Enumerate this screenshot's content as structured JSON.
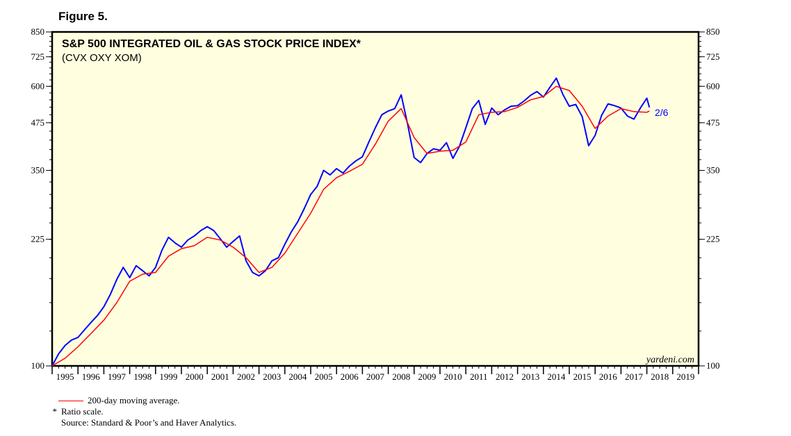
{
  "figure_label": "Figure 5.",
  "chart_data": {
    "type": "line",
    "title": "S&P 500 INTEGRATED OIL & GAS STOCK PRICE INDEX*",
    "subtitle": "(CVX OXY XOM)",
    "y_scale": "log",
    "ylim": [
      100,
      850
    ],
    "y_ticks": [
      100,
      225,
      350,
      475,
      600,
      725,
      850
    ],
    "y_tick_labels": [
      "100",
      "225",
      "350",
      "475",
      "600",
      "725",
      "850"
    ],
    "xlim": [
      1995.0,
      2020.0
    ],
    "x_tick_labels": [
      "1995",
      "1996",
      "1997",
      "1998",
      "1999",
      "2000",
      "2001",
      "2002",
      "2003",
      "2004",
      "2005",
      "2006",
      "2007",
      "2008",
      "2009",
      "2010",
      "2011",
      "2012",
      "2013",
      "2014",
      "2015",
      "2016",
      "2017",
      "2018",
      "2019"
    ],
    "series": [
      {
        "name": "Index",
        "color": "#0000ff",
        "points": [
          [
            1995.0,
            100
          ],
          [
            1995.25,
            108
          ],
          [
            1995.5,
            114
          ],
          [
            1995.75,
            118
          ],
          [
            1996.0,
            120
          ],
          [
            1996.25,
            126
          ],
          [
            1996.5,
            132
          ],
          [
            1996.75,
            138
          ],
          [
            1997.0,
            146
          ],
          [
            1997.25,
            158
          ],
          [
            1997.5,
            174
          ],
          [
            1997.75,
            188
          ],
          [
            1998.0,
            176
          ],
          [
            1998.25,
            190
          ],
          [
            1998.5,
            184
          ],
          [
            1998.75,
            178
          ],
          [
            1999.0,
            188
          ],
          [
            1999.25,
            210
          ],
          [
            1999.5,
            228
          ],
          [
            1999.75,
            220
          ],
          [
            2000.0,
            214
          ],
          [
            2000.25,
            224
          ],
          [
            2000.5,
            230
          ],
          [
            2000.75,
            238
          ],
          [
            2001.0,
            244
          ],
          [
            2001.25,
            238
          ],
          [
            2001.5,
            226
          ],
          [
            2001.75,
            214
          ],
          [
            2002.0,
            222
          ],
          [
            2002.25,
            230
          ],
          [
            2002.5,
            196
          ],
          [
            2002.75,
            182
          ],
          [
            2003.0,
            178
          ],
          [
            2003.25,
            184
          ],
          [
            2003.5,
            196
          ],
          [
            2003.75,
            200
          ],
          [
            2004.0,
            218
          ],
          [
            2004.25,
            236
          ],
          [
            2004.5,
            252
          ],
          [
            2004.75,
            274
          ],
          [
            2005.0,
            300
          ],
          [
            2005.25,
            316
          ],
          [
            2005.5,
            350
          ],
          [
            2005.75,
            340
          ],
          [
            2006.0,
            354
          ],
          [
            2006.25,
            344
          ],
          [
            2006.5,
            360
          ],
          [
            2006.75,
            372
          ],
          [
            2007.0,
            382
          ],
          [
            2007.25,
            420
          ],
          [
            2007.5,
            460
          ],
          [
            2007.75,
            500
          ],
          [
            2008.0,
            512
          ],
          [
            2008.25,
            520
          ],
          [
            2008.5,
            568
          ],
          [
            2008.75,
            470
          ],
          [
            2009.0,
            380
          ],
          [
            2009.25,
            368
          ],
          [
            2009.5,
            390
          ],
          [
            2009.75,
            402
          ],
          [
            2010.0,
            398
          ],
          [
            2010.25,
            418
          ],
          [
            2010.5,
            378
          ],
          [
            2010.75,
            408
          ],
          [
            2011.0,
            460
          ],
          [
            2011.25,
            520
          ],
          [
            2011.5,
            548
          ],
          [
            2011.75,
            470
          ],
          [
            2012.0,
            522
          ],
          [
            2012.25,
            500
          ],
          [
            2012.5,
            516
          ],
          [
            2012.75,
            528
          ],
          [
            2013.0,
            530
          ],
          [
            2013.25,
            546
          ],
          [
            2013.5,
            566
          ],
          [
            2013.75,
            580
          ],
          [
            2014.0,
            560
          ],
          [
            2014.25,
            596
          ],
          [
            2014.5,
            632
          ],
          [
            2014.75,
            570
          ],
          [
            2015.0,
            528
          ],
          [
            2015.25,
            534
          ],
          [
            2015.5,
            494
          ],
          [
            2015.75,
            410
          ],
          [
            2016.0,
            438
          ],
          [
            2016.25,
            498
          ],
          [
            2016.5,
            536
          ],
          [
            2016.75,
            530
          ],
          [
            2017.0,
            522
          ],
          [
            2017.25,
            496
          ],
          [
            2017.5,
            486
          ],
          [
            2017.75,
            522
          ],
          [
            2018.0,
            556
          ],
          [
            2018.1,
            524
          ]
        ]
      },
      {
        "name": "200-day moving average.",
        "color": "#ff0000",
        "points": [
          [
            1995.0,
            100
          ],
          [
            1995.5,
            105
          ],
          [
            1996.0,
            113
          ],
          [
            1996.5,
            123
          ],
          [
            1997.0,
            134
          ],
          [
            1997.5,
            150
          ],
          [
            1998.0,
            172
          ],
          [
            1998.5,
            180
          ],
          [
            1999.0,
            182
          ],
          [
            1999.5,
            202
          ],
          [
            2000.0,
            212
          ],
          [
            2000.5,
            216
          ],
          [
            2001.0,
            228
          ],
          [
            2001.5,
            224
          ],
          [
            2002.0,
            214
          ],
          [
            2002.5,
            200
          ],
          [
            2003.0,
            182
          ],
          [
            2003.5,
            188
          ],
          [
            2004.0,
            206
          ],
          [
            2004.5,
            234
          ],
          [
            2005.0,
            266
          ],
          [
            2005.5,
            310
          ],
          [
            2006.0,
            334
          ],
          [
            2006.5,
            348
          ],
          [
            2007.0,
            364
          ],
          [
            2007.5,
            414
          ],
          [
            2008.0,
            480
          ],
          [
            2008.5,
            520
          ],
          [
            2009.0,
            432
          ],
          [
            2009.5,
            390
          ],
          [
            2010.0,
            396
          ],
          [
            2010.5,
            398
          ],
          [
            2011.0,
            420
          ],
          [
            2011.5,
            500
          ],
          [
            2012.0,
            508
          ],
          [
            2012.5,
            510
          ],
          [
            2013.0,
            524
          ],
          [
            2013.5,
            550
          ],
          [
            2014.0,
            562
          ],
          [
            2014.5,
            600
          ],
          [
            2015.0,
            584
          ],
          [
            2015.5,
            528
          ],
          [
            2016.0,
            458
          ],
          [
            2016.5,
            496
          ],
          [
            2017.0,
            520
          ],
          [
            2017.5,
            510
          ],
          [
            2018.0,
            508
          ],
          [
            2018.1,
            512
          ]
        ]
      }
    ],
    "annotations": [
      {
        "text": "2/6",
        "color": "#0000ff"
      },
      {
        "text": "yardeni.com",
        "color": "#000000"
      }
    ]
  },
  "notes": {
    "legend_ma": "200-day moving average.",
    "star": "*",
    "ratio": "Ratio scale.",
    "source": "Source: Standard & Poor’s and Haver Analytics."
  }
}
